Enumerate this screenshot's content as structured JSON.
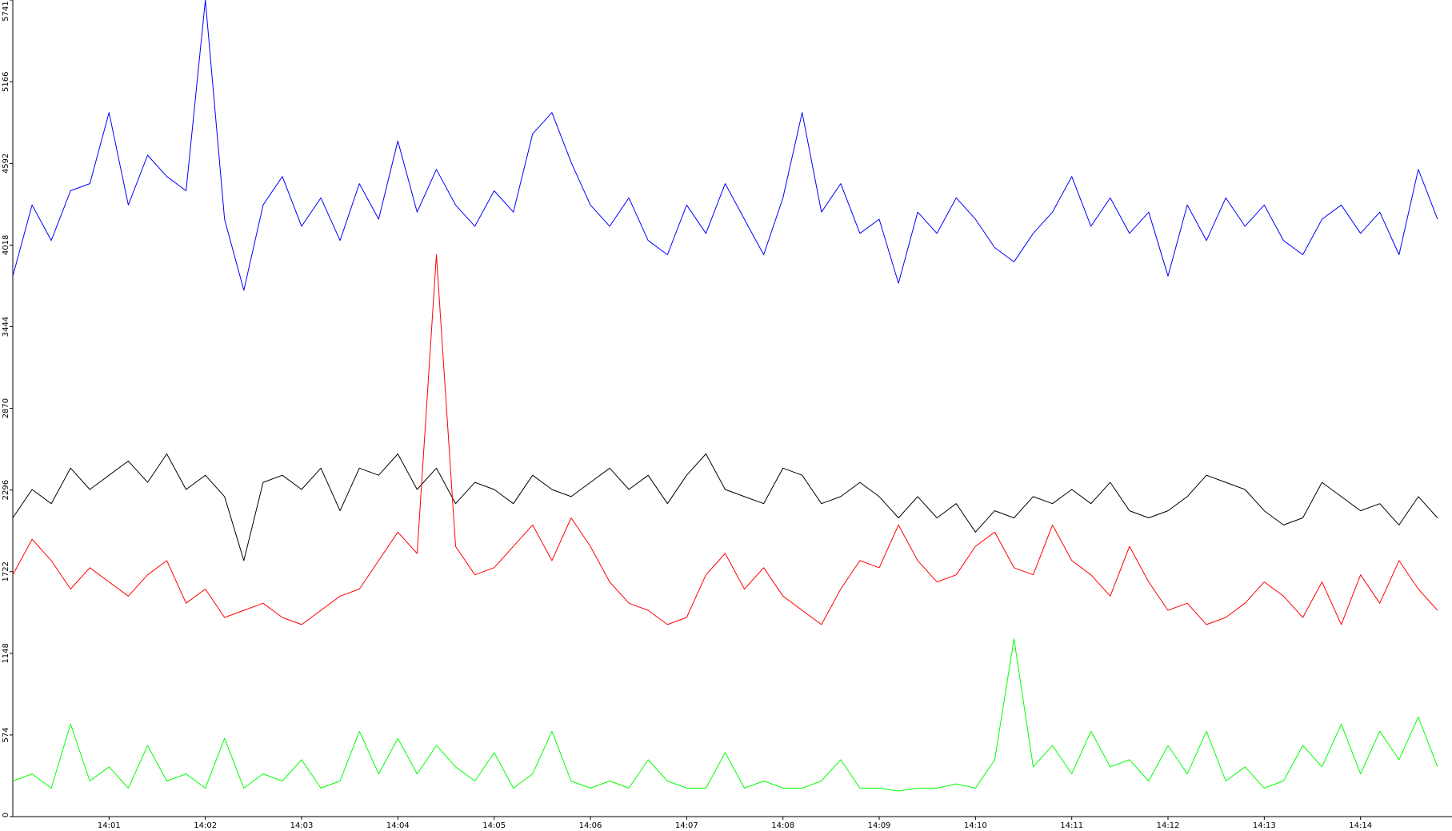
{
  "chart_data": {
    "type": "line",
    "x": [
      0,
      0.2,
      0.4,
      0.6,
      0.8,
      1,
      1.2,
      1.4,
      1.6,
      1.8,
      2,
      2.2,
      2.4,
      2.6,
      2.8,
      3,
      3.2,
      3.4,
      3.6,
      3.8,
      4,
      4.2,
      4.4,
      4.6,
      4.8,
      5,
      5.2,
      5.4,
      5.6,
      5.8,
      6,
      6.2,
      6.4,
      6.6,
      6.8,
      7,
      7.2,
      7.4,
      7.6,
      7.8,
      8,
      8.2,
      8.4,
      8.6,
      8.8,
      9,
      9.2,
      9.4,
      9.6,
      9.8,
      10,
      10.2,
      10.4,
      10.6,
      10.8,
      11,
      11.2,
      11.4,
      11.6,
      11.8,
      12,
      12.2,
      12.4,
      12.6,
      12.8,
      13,
      13.2,
      13.4,
      13.6,
      13.8,
      14,
      14.2,
      14.4,
      14.6,
      14.8
    ],
    "series": [
      {
        "color": "#0000ff",
        "values": [
          3800,
          4300,
          4050,
          4400,
          4450,
          4950,
          4300,
          4650,
          4500,
          4400,
          5741,
          4200,
          3700,
          4300,
          4500,
          4150,
          4350,
          4050,
          4450,
          4200,
          4750,
          4250,
          4550,
          4300,
          4150,
          4400,
          4250,
          4800,
          4950,
          4600,
          4300,
          4150,
          4350,
          4050,
          3950,
          4300,
          4100,
          4450,
          4200,
          3950,
          4350,
          4950,
          4250,
          4450,
          4100,
          4200,
          3750,
          4250,
          4100,
          4350,
          4200,
          4000,
          3900,
          4100,
          4250,
          4500,
          4150,
          4350,
          4100,
          4250,
          3800,
          4300,
          4050,
          4350,
          4150,
          4300,
          4050,
          3950,
          4200,
          4300,
          4100,
          4250,
          3950,
          4550,
          4200
        ]
      },
      {
        "color": "#000000",
        "values": [
          2100,
          2300,
          2200,
          2450,
          2300,
          2400,
          2500,
          2350,
          2550,
          2300,
          2400,
          2250,
          1800,
          2350,
          2400,
          2300,
          2450,
          2150,
          2450,
          2400,
          2550,
          2300,
          2450,
          2200,
          2350,
          2300,
          2200,
          2400,
          2300,
          2250,
          2350,
          2450,
          2300,
          2400,
          2200,
          2400,
          2550,
          2300,
          2250,
          2200,
          2450,
          2400,
          2200,
          2250,
          2350,
          2250,
          2100,
          2250,
          2100,
          2200,
          2000,
          2150,
          2100,
          2250,
          2200,
          2300,
          2200,
          2350,
          2150,
          2100,
          2150,
          2250,
          2400,
          2350,
          2300,
          2150,
          2050,
          2100,
          2350,
          2250,
          2150,
          2200,
          2050,
          2250,
          2100
        ]
      },
      {
        "color": "#ff0000",
        "values": [
          1700,
          1950,
          1800,
          1600,
          1750,
          1650,
          1550,
          1700,
          1800,
          1500,
          1600,
          1400,
          1450,
          1500,
          1400,
          1350,
          1450,
          1550,
          1600,
          1800,
          2000,
          1850,
          3950,
          1900,
          1700,
          1750,
          1900,
          2050,
          1800,
          2100,
          1900,
          1650,
          1500,
          1450,
          1350,
          1400,
          1700,
          1850,
          1600,
          1750,
          1550,
          1450,
          1350,
          1600,
          1800,
          1750,
          2050,
          1800,
          1650,
          1700,
          1900,
          2000,
          1750,
          1700,
          2050,
          1800,
          1700,
          1550,
          1900,
          1650,
          1450,
          1500,
          1350,
          1400,
          1500,
          1650,
          1550,
          1400,
          1650,
          1350,
          1700,
          1500,
          1800,
          1600,
          1450
        ]
      },
      {
        "color": "#00ff00",
        "values": [
          250,
          300,
          200,
          650,
          250,
          350,
          200,
          500,
          250,
          300,
          200,
          550,
          200,
          300,
          250,
          400,
          200,
          250,
          600,
          300,
          550,
          300,
          500,
          350,
          250,
          450,
          200,
          300,
          600,
          250,
          200,
          250,
          200,
          400,
          250,
          200,
          200,
          450,
          200,
          250,
          200,
          200,
          250,
          400,
          200,
          200,
          180,
          200,
          200,
          230,
          200,
          400,
          1250,
          350,
          500,
          300,
          600,
          350,
          400,
          250,
          500,
          300,
          600,
          250,
          350,
          200,
          250,
          500,
          350,
          650,
          300,
          600,
          400,
          700,
          350
        ]
      }
    ],
    "xlim": [
      0,
      14.95
    ],
    "xticks": [
      {
        "value": 1,
        "label": "14:01"
      },
      {
        "value": 2,
        "label": "14:02"
      },
      {
        "value": 3,
        "label": "14:03"
      },
      {
        "value": 4,
        "label": "14:04"
      },
      {
        "value": 5,
        "label": "14:05"
      },
      {
        "value": 6,
        "label": "14:06"
      },
      {
        "value": 7,
        "label": "14:07"
      },
      {
        "value": 8,
        "label": "14:08"
      },
      {
        "value": 9,
        "label": "14:09"
      },
      {
        "value": 10,
        "label": "14:10"
      },
      {
        "value": 11,
        "label": "14:11"
      },
      {
        "value": 12,
        "label": "14:12"
      },
      {
        "value": 13,
        "label": "14:13"
      },
      {
        "value": 14,
        "label": "14:14"
      }
    ],
    "ylim": [
      0,
      5741
    ],
    "yticks": [
      0,
      574,
      1148,
      1722,
      2296,
      2870,
      3444,
      4018,
      4592,
      5166,
      5741
    ]
  }
}
